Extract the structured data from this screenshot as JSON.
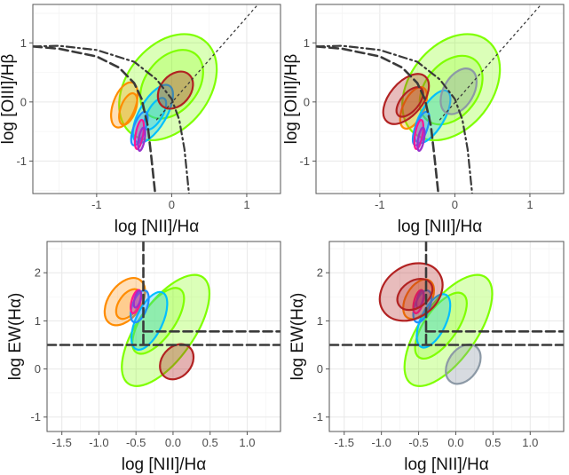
{
  "chart_data": [
    {
      "type": "contour",
      "panel": "top-left",
      "xlabel": "log [NII]/Hα",
      "ylabel": "log [OIII]/Hβ",
      "xlim": [
        -1.85,
        1.45
      ],
      "ylim": [
        -1.55,
        1.65
      ],
      "xticks": [
        -1,
        0,
        1
      ],
      "yticks": [
        -1,
        0,
        1
      ],
      "grid": true,
      "guide_lines": [
        {
          "style": "dash-dot",
          "points": [
            [
              -1.85,
              0.94
            ],
            [
              -1.5,
              0.95
            ],
            [
              -1.0,
              0.88
            ],
            [
              -0.5,
              0.68
            ],
            [
              -0.2,
              0.38
            ],
            [
              0,
              0.05
            ],
            [
              0.1,
              -0.3
            ],
            [
              0.17,
              -0.8
            ],
            [
              0.23,
              -1.55
            ]
          ]
        },
        {
          "style": "dashed",
          "points": [
            [
              -1.85,
              0.94
            ],
            [
              -1.5,
              0.9
            ],
            [
              -1.0,
              0.77
            ],
            [
              -0.7,
              0.58
            ],
            [
              -0.5,
              0.32
            ],
            [
              -0.4,
              0.05
            ],
            [
              -0.32,
              -0.4
            ],
            [
              -0.27,
              -0.95
            ],
            [
              -0.22,
              -1.55
            ]
          ]
        },
        {
          "style": "dotdash",
          "points": [
            [
              -0.2,
              -0.3
            ],
            [
              1.15,
              1.65
            ]
          ]
        }
      ],
      "series": [
        {
          "color": "#7fff00",
          "ellipses": [
            {
              "cx": -0.05,
              "cy": 0.25,
              "rx": 0.55,
              "ry": 1.0,
              "angle": 38,
              "fill_opacity": 0.28
            },
            {
              "cx": 0.0,
              "cy": 0.3,
              "rx": 0.35,
              "ry": 0.65,
              "angle": 38,
              "fill_opacity": 0.22
            }
          ]
        },
        {
          "color": "#ff8c00",
          "ellipses": [
            {
              "cx": -0.63,
              "cy": -0.05,
              "rx": 0.15,
              "ry": 0.4,
              "angle": 20,
              "fill_opacity": 0.28
            },
            {
              "cx": -0.58,
              "cy": -0.12,
              "rx": 0.1,
              "ry": 0.28,
              "angle": 20,
              "fill_opacity": 0.22
            }
          ]
        },
        {
          "color": "#00bfff",
          "ellipses": [
            {
              "cx": -0.25,
              "cy": -0.2,
              "rx": 0.18,
              "ry": 0.55,
              "angle": 30,
              "fill_opacity": 0.28
            },
            {
              "cx": -0.22,
              "cy": -0.2,
              "rx": 0.1,
              "ry": 0.3,
              "angle": 30,
              "fill_opacity": 0.22
            }
          ]
        },
        {
          "color": "#1e90ff",
          "ellipses": [
            {
              "cx": -0.43,
              "cy": -0.45,
              "rx": 0.08,
              "ry": 0.3,
              "angle": 20,
              "fill_opacity": 0.28
            }
          ]
        },
        {
          "color": "#ff1493",
          "ellipses": [
            {
              "cx": -0.43,
              "cy": -0.55,
              "rx": 0.05,
              "ry": 0.25,
              "angle": 10,
              "fill_opacity": 0.3
            }
          ]
        },
        {
          "color": "#9932cc",
          "ellipses": [
            {
              "cx": -0.4,
              "cy": -0.63,
              "rx": 0.04,
              "ry": 0.2,
              "angle": 10,
              "fill_opacity": 0.3
            }
          ]
        },
        {
          "color": "#b22222",
          "ellipses": [
            {
              "cx": 0.05,
              "cy": 0.2,
              "rx": 0.2,
              "ry": 0.35,
              "angle": 40,
              "fill_opacity": 0.35
            }
          ]
        }
      ]
    },
    {
      "type": "contour",
      "panel": "top-right",
      "xlabel": "log [NII]/Hα",
      "ylabel": "log [OIII]/Hβ",
      "xlim": [
        -1.85,
        1.45
      ],
      "ylim": [
        -1.55,
        1.65
      ],
      "xticks": [
        -1,
        0,
        1
      ],
      "yticks": [
        -1,
        0,
        1
      ],
      "grid": true,
      "guide_lines": [
        {
          "style": "dash-dot",
          "points": [
            [
              -1.85,
              0.94
            ],
            [
              -1.5,
              0.95
            ],
            [
              -1.0,
              0.88
            ],
            [
              -0.5,
              0.68
            ],
            [
              -0.2,
              0.38
            ],
            [
              0,
              0.05
            ],
            [
              0.1,
              -0.3
            ],
            [
              0.17,
              -0.8
            ],
            [
              0.23,
              -1.55
            ]
          ]
        },
        {
          "style": "dashed",
          "points": [
            [
              -1.85,
              0.94
            ],
            [
              -1.5,
              0.9
            ],
            [
              -1.0,
              0.77
            ],
            [
              -0.7,
              0.58
            ],
            [
              -0.5,
              0.32
            ],
            [
              -0.4,
              0.05
            ],
            [
              -0.32,
              -0.4
            ],
            [
              -0.27,
              -0.95
            ],
            [
              -0.22,
              -1.55
            ]
          ]
        },
        {
          "style": "dotdash",
          "points": [
            [
              -0.2,
              -0.3
            ],
            [
              1.15,
              1.65
            ]
          ]
        }
      ],
      "series": [
        {
          "color": "#7fff00",
          "ellipses": [
            {
              "cx": -0.05,
              "cy": 0.25,
              "rx": 0.55,
              "ry": 1.0,
              "angle": 38,
              "fill_opacity": 0.28
            },
            {
              "cx": -0.05,
              "cy": 0.2,
              "rx": 0.35,
              "ry": 0.65,
              "angle": 38,
              "fill_opacity": 0.22
            }
          ]
        },
        {
          "color": "#ff8c00",
          "ellipses": [
            {
              "cx": -0.55,
              "cy": -0.1,
              "rx": 0.14,
              "ry": 0.38,
              "angle": 25,
              "fill_opacity": 0.28
            }
          ]
        },
        {
          "color": "#00bfff",
          "ellipses": [
            {
              "cx": -0.3,
              "cy": -0.25,
              "rx": 0.16,
              "ry": 0.5,
              "angle": 30,
              "fill_opacity": 0.28
            }
          ]
        },
        {
          "color": "#1e90ff",
          "ellipses": [
            {
              "cx": -0.45,
              "cy": -0.45,
              "rx": 0.08,
              "ry": 0.3,
              "angle": 20,
              "fill_opacity": 0.28
            }
          ]
        },
        {
          "color": "#ff1493",
          "ellipses": [
            {
              "cx": -0.48,
              "cy": -0.55,
              "rx": 0.05,
              "ry": 0.25,
              "angle": 10,
              "fill_opacity": 0.3
            }
          ]
        },
        {
          "color": "#9932cc",
          "ellipses": [
            {
              "cx": -0.45,
              "cy": -0.63,
              "rx": 0.04,
              "ry": 0.2,
              "angle": 10,
              "fill_opacity": 0.3
            }
          ]
        },
        {
          "color": "#b22222",
          "ellipses": [
            {
              "cx": -0.65,
              "cy": 0.05,
              "rx": 0.22,
              "ry": 0.5,
              "angle": 40,
              "fill_opacity": 0.3
            },
            {
              "cx": -0.6,
              "cy": 0.0,
              "rx": 0.12,
              "ry": 0.3,
              "angle": 40,
              "fill_opacity": 0.25
            }
          ]
        },
        {
          "color": "#8c99a6",
          "ellipses": [
            {
              "cx": 0.05,
              "cy": 0.18,
              "rx": 0.2,
              "ry": 0.42,
              "angle": 30,
              "fill_opacity": 0.35
            }
          ]
        }
      ]
    },
    {
      "type": "contour",
      "panel": "bottom-left",
      "xlabel": "log [NII]/Hα",
      "ylabel": "log EW(Hα)",
      "xlim": [
        -1.7,
        1.45
      ],
      "ylim": [
        -1.3,
        2.65
      ],
      "xticks": [
        -1.5,
        -1.0,
        -0.5,
        0.0,
        0.5,
        1.0
      ],
      "xtick_labels": [
        "-1.5",
        "-1.0",
        "-0.5",
        "0.0",
        "0.5",
        "1.0"
      ],
      "yticks": [
        -1,
        0,
        1,
        2
      ],
      "grid": true,
      "guide_lines": [
        {
          "style": "dashed",
          "points": [
            [
              -0.4,
              2.65
            ],
            [
              -0.4,
              0.5
            ]
          ]
        },
        {
          "style": "dashed",
          "points": [
            [
              -0.4,
              0.78
            ],
            [
              1.45,
              0.78
            ]
          ]
        },
        {
          "style": "dashed",
          "points": [
            [
              -1.7,
              0.5
            ],
            [
              1.45,
              0.5
            ]
          ]
        }
      ],
      "series": [
        {
          "color": "#7fff00",
          "ellipses": [
            {
              "cx": -0.1,
              "cy": 0.8,
              "rx": 0.38,
              "ry": 1.35,
              "angle": 35,
              "fill_opacity": 0.28
            },
            {
              "cx": -0.2,
              "cy": 1.0,
              "rx": 0.22,
              "ry": 0.8,
              "angle": 35,
              "fill_opacity": 0.22
            }
          ]
        },
        {
          "color": "#ff8c00",
          "ellipses": [
            {
              "cx": -0.65,
              "cy": 1.4,
              "rx": 0.22,
              "ry": 0.55,
              "angle": 35,
              "fill_opacity": 0.28
            },
            {
              "cx": -0.6,
              "cy": 1.35,
              "rx": 0.13,
              "ry": 0.35,
              "angle": 35,
              "fill_opacity": 0.22
            }
          ]
        },
        {
          "color": "#00bfff",
          "ellipses": [
            {
              "cx": -0.32,
              "cy": 1.0,
              "rx": 0.18,
              "ry": 0.65,
              "angle": 25,
              "fill_opacity": 0.28
            }
          ]
        },
        {
          "color": "#1e90ff",
          "ellipses": [
            {
              "cx": -0.45,
              "cy": 1.3,
              "rx": 0.1,
              "ry": 0.35,
              "angle": 20,
              "fill_opacity": 0.28
            }
          ]
        },
        {
          "color": "#ff1493",
          "ellipses": [
            {
              "cx": -0.5,
              "cy": 1.4,
              "rx": 0.06,
              "ry": 0.25,
              "angle": 15,
              "fill_opacity": 0.3
            }
          ]
        },
        {
          "color": "#9932cc",
          "ellipses": [
            {
              "cx": -0.48,
              "cy": 1.45,
              "rx": 0.04,
              "ry": 0.18,
              "angle": 15,
              "fill_opacity": 0.3
            }
          ]
        },
        {
          "color": "#b22222",
          "ellipses": [
            {
              "cx": 0.05,
              "cy": 0.15,
              "rx": 0.2,
              "ry": 0.4,
              "angle": 40,
              "fill_opacity": 0.35
            }
          ]
        }
      ]
    },
    {
      "type": "contour",
      "panel": "bottom-right",
      "xlabel": "log [NII]/Hα",
      "ylabel": "log EW(Hα)",
      "xlim": [
        -1.7,
        1.45
      ],
      "ylim": [
        -1.3,
        2.65
      ],
      "xticks": [
        -1.5,
        -1.0,
        -0.5,
        0.0,
        0.5,
        1.0
      ],
      "xtick_labels": [
        "-1.5",
        "-1.0",
        "-0.5",
        "0.0",
        "0.5",
        "1.0"
      ],
      "yticks": [
        -1,
        0,
        1,
        2
      ],
      "grid": true,
      "guide_lines": [
        {
          "style": "dashed",
          "points": [
            [
              -0.4,
              2.65
            ],
            [
              -0.4,
              0.5
            ]
          ]
        },
        {
          "style": "dashed",
          "points": [
            [
              -0.4,
              0.78
            ],
            [
              1.45,
              0.78
            ]
          ]
        },
        {
          "style": "dashed",
          "points": [
            [
              -1.7,
              0.5
            ],
            [
              1.45,
              0.5
            ]
          ]
        }
      ],
      "series": [
        {
          "color": "#7fff00",
          "ellipses": [
            {
              "cx": -0.1,
              "cy": 0.8,
              "rx": 0.38,
              "ry": 1.35,
              "angle": 35,
              "fill_opacity": 0.28
            },
            {
              "cx": -0.2,
              "cy": 0.9,
              "rx": 0.22,
              "ry": 0.8,
              "angle": 35,
              "fill_opacity": 0.22
            }
          ]
        },
        {
          "color": "#ff8c00",
          "ellipses": [
            {
              "cx": -0.5,
              "cy": 1.45,
              "rx": 0.17,
              "ry": 0.45,
              "angle": 30,
              "fill_opacity": 0.28
            }
          ]
        },
        {
          "color": "#00bfff",
          "ellipses": [
            {
              "cx": -0.3,
              "cy": 1.0,
              "rx": 0.17,
              "ry": 0.6,
              "angle": 25,
              "fill_opacity": 0.28
            }
          ]
        },
        {
          "color": "#1e90ff",
          "ellipses": [
            {
              "cx": -0.45,
              "cy": 1.3,
              "rx": 0.1,
              "ry": 0.35,
              "angle": 20,
              "fill_opacity": 0.28
            }
          ]
        },
        {
          "color": "#ff1493",
          "ellipses": [
            {
              "cx": -0.5,
              "cy": 1.4,
              "rx": 0.06,
              "ry": 0.25,
              "angle": 15,
              "fill_opacity": 0.3
            }
          ]
        },
        {
          "color": "#9932cc",
          "ellipses": [
            {
              "cx": -0.48,
              "cy": 1.45,
              "rx": 0.04,
              "ry": 0.18,
              "angle": 15,
              "fill_opacity": 0.3
            }
          ]
        },
        {
          "color": "#b22222",
          "ellipses": [
            {
              "cx": -0.6,
              "cy": 1.6,
              "rx": 0.35,
              "ry": 0.7,
              "angle": 55,
              "fill_opacity": 0.3
            },
            {
              "cx": -0.55,
              "cy": 1.55,
              "rx": 0.18,
              "ry": 0.4,
              "angle": 55,
              "fill_opacity": 0.25
            }
          ]
        },
        {
          "color": "#8c99a6",
          "ellipses": [
            {
              "cx": 0.1,
              "cy": 0.1,
              "rx": 0.2,
              "ry": 0.45,
              "angle": 35,
              "fill_opacity": 0.35
            }
          ]
        }
      ]
    }
  ]
}
